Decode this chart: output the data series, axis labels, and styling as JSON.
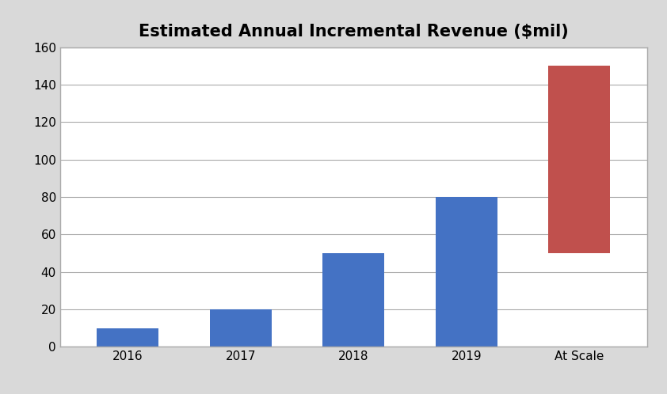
{
  "title": "Estimated Annual Incremental Revenue ($mil)",
  "categories": [
    "2016",
    "2017",
    "2018",
    "2019",
    "At Scale"
  ],
  "bar_bottoms": [
    0,
    0,
    0,
    0,
    50
  ],
  "bar_heights": [
    10,
    20,
    50,
    80,
    100
  ],
  "bar_colors": [
    "#4472C4",
    "#4472C4",
    "#4472C4",
    "#4472C4",
    "#C0504D"
  ],
  "ylim": [
    0,
    160
  ],
  "yticks": [
    0,
    20,
    40,
    60,
    80,
    100,
    120,
    140,
    160
  ],
  "grid_color": "#AAAAAA",
  "plot_bg_color": "#FFFFFF",
  "title_fontsize": 15,
  "tick_fontsize": 11,
  "bar_width": 0.55,
  "figure_bg": "#D9D9D9",
  "box_bg": "#FFFFFF",
  "border_color": "#AAAAAA"
}
